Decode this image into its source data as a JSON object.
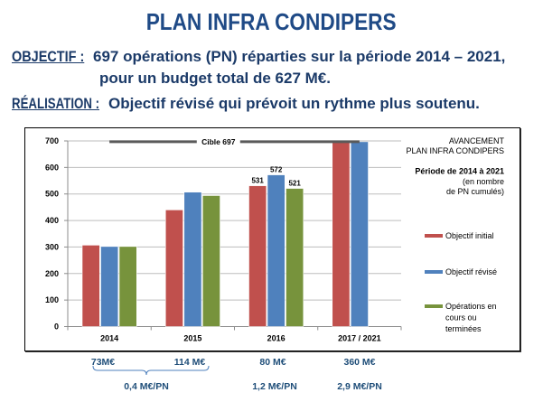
{
  "page": {
    "title": "PLAN INFRA CONDIPERS"
  },
  "objectif": {
    "label": "OBJECTIF :",
    "line1": "697 opérations (PN) réparties sur la période 2014 – 2021,",
    "line2": "pour un budget total de 627 M€."
  },
  "realisation": {
    "label": "RÉALISATION :",
    "text": "Objectif révisé qui prévoit un rythme plus soutenu."
  },
  "chart_data": {
    "type": "bar",
    "title": [
      "AVANCEMENT",
      "PLAN INFRA CONDIPERS"
    ],
    "subtitle": "Période de 2014 à 2021",
    "note": [
      "(en nombre",
      "de PN cumulés)"
    ],
    "xlabel": "",
    "ylabel": "",
    "categories": [
      "2014",
      "2015",
      "2016",
      "2017 / 2021"
    ],
    "series": [
      {
        "name": "Objectif initial",
        "legend_lines": [
          "Objectif initial"
        ],
        "color": "#C0504D",
        "values": [
          307,
          440,
          531,
          697
        ]
      },
      {
        "name": "Objectif révisé",
        "legend_lines": [
          "Objectif révisé"
        ],
        "color": "#4F81BD",
        "values": [
          302,
          507,
          572,
          697
        ]
      },
      {
        "name": "Opérations en cours ou terminées",
        "legend_lines": [
          "Opérations en",
          "cours ou",
          "terminées"
        ],
        "color": "#77933C",
        "values": [
          302,
          494,
          521,
          null
        ]
      }
    ],
    "data_labels": [
      {
        "series": 0,
        "category": 2,
        "text": "531"
      },
      {
        "series": 1,
        "category": 2,
        "text": "572"
      },
      {
        "series": 2,
        "category": 2,
        "text": "521"
      }
    ],
    "ylim": [
      0,
      700
    ],
    "yticks": [
      0,
      100,
      200,
      300,
      400,
      500,
      600,
      700
    ],
    "grid": true,
    "legend": "right",
    "reference_line": {
      "label": "Cible 697",
      "value": 697
    }
  },
  "budget_annotations": {
    "amounts": [
      {
        "category": "2014",
        "text": "73M€"
      },
      {
        "category": "2015",
        "text": "114 M€"
      },
      {
        "category": "2016",
        "text": "80 M€"
      },
      {
        "category": "2017 / 2021",
        "text": "360 M€"
      }
    ],
    "cost_per_pn": [
      {
        "categories": [
          "2014",
          "2015"
        ],
        "text": "0,4 M€/PN"
      },
      {
        "categories": [
          "2016"
        ],
        "text": "1,2 M€/PN"
      },
      {
        "categories": [
          "2017 / 2021"
        ],
        "text": "2,9 M€/PN"
      }
    ]
  }
}
